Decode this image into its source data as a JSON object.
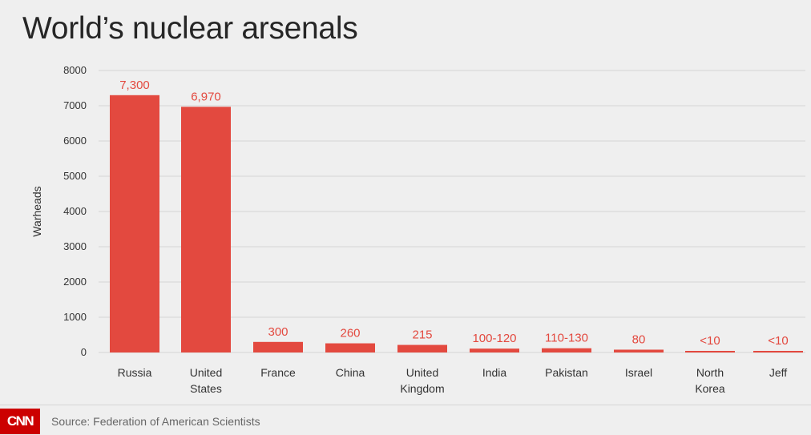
{
  "title": "World’s nuclear arsenals",
  "source": "Source: Federation of American Scientists",
  "logo_text": "CNN",
  "colors": {
    "bar": "#e3493f",
    "grid": "#d4d4d4",
    "label": "#e3493f",
    "logo": "#cc0000"
  },
  "chart_data": {
    "type": "bar",
    "title": "World’s nuclear arsenals",
    "xlabel": "",
    "ylabel": "Warheads",
    "ylim": [
      0,
      8000
    ],
    "yticks": [
      0,
      1000,
      2000,
      3000,
      4000,
      5000,
      6000,
      7000,
      8000
    ],
    "grid": true,
    "categories": [
      [
        "Russia"
      ],
      [
        "United",
        "States"
      ],
      [
        "France"
      ],
      [
        "China"
      ],
      [
        "United",
        "Kingdom"
      ],
      [
        "India"
      ],
      [
        "Pakistan"
      ],
      [
        "Israel"
      ],
      [
        "North",
        "Korea"
      ],
      [
        "Jeff"
      ]
    ],
    "values": [
      7300,
      6970,
      300,
      260,
      215,
      110,
      120,
      80,
      10,
      10
    ],
    "data_labels": [
      "7,300",
      "6,970",
      "300",
      "260",
      "215",
      "100-120",
      "110-130",
      "80",
      "<10",
      "<10"
    ]
  }
}
